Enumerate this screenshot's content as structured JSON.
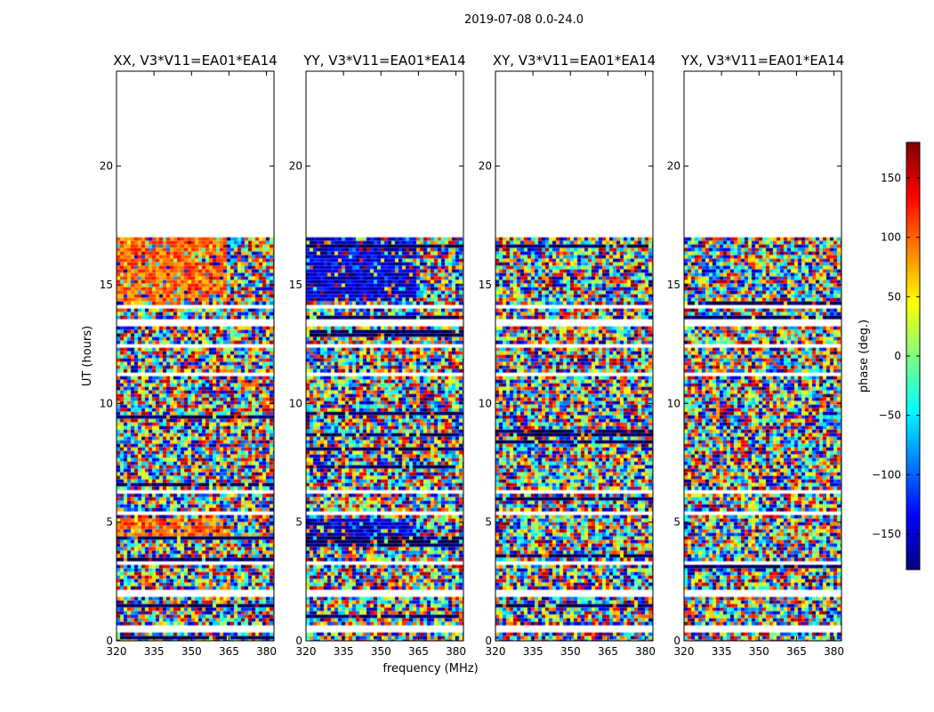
{
  "figure": {
    "suptitle": "2019-07-08 0.0-24.0",
    "xlabel": "frequency (MHz)",
    "ylabel": "UT (hours)"
  },
  "chart_data": {
    "type": "heatmap",
    "title": "2019-07-08 0.0-24.0",
    "xlabel": "frequency (MHz)",
    "ylabel": "UT (hours)",
    "xlim": [
      320,
      383
    ],
    "ylim": [
      0,
      24
    ],
    "xticks": [
      320,
      335,
      350,
      365,
      380
    ],
    "yticks": [
      0,
      5,
      10,
      15,
      20
    ],
    "data_range_hours": [
      0,
      17
    ],
    "panels": [
      {
        "title": "XX, V3*V11=EA01*EA14",
        "coherent_phase_deg": 100,
        "coherent_hours": [
          [
            14.3,
            17.0
          ],
          [
            4.4,
            5.2
          ]
        ],
        "coherent_freq_max": 363
      },
      {
        "title": "YY, V3*V11=EA01*EA14",
        "coherent_phase_deg": -150,
        "coherent_hours": [
          [
            14.3,
            17.0
          ],
          [
            4.4,
            5.2
          ]
        ],
        "coherent_freq_max": 363
      },
      {
        "title": "XY, V3*V11=EA01*EA14",
        "coherent_phase_deg": null,
        "coherent_hours": [],
        "coherent_freq_max": null
      },
      {
        "title": "YX, V3*V11=EA01*EA14",
        "coherent_phase_deg": null,
        "coherent_hours": [],
        "coherent_freq_max": null
      }
    ],
    "flagged_hours": [
      [
        0.4,
        0.6
      ],
      [
        1.9,
        2.1
      ],
      [
        3.25,
        3.35
      ],
      [
        5.25,
        5.5
      ],
      [
        13.3,
        13.6
      ],
      [
        12.35,
        12.55
      ],
      [
        14.0,
        14.2
      ],
      [
        11.2,
        11.3
      ],
      [
        6.2,
        6.3
      ],
      [
        9.05,
        9.1
      ]
    ],
    "colorbar": {
      "label": "phase (deg.)",
      "range": [
        -180,
        180
      ],
      "ticks": [
        150,
        100,
        50,
        0,
        -50,
        -100,
        -150
      ],
      "tick_labels": [
        "150",
        "100",
        "50",
        "0",
        "−50",
        "−100",
        "−150"
      ],
      "colormap": [
        "#00007f",
        "#0000ff",
        "#007fff",
        "#00ffff",
        "#7fff7f",
        "#ffff00",
        "#ff7f00",
        "#ff0000",
        "#7f0000"
      ]
    }
  }
}
